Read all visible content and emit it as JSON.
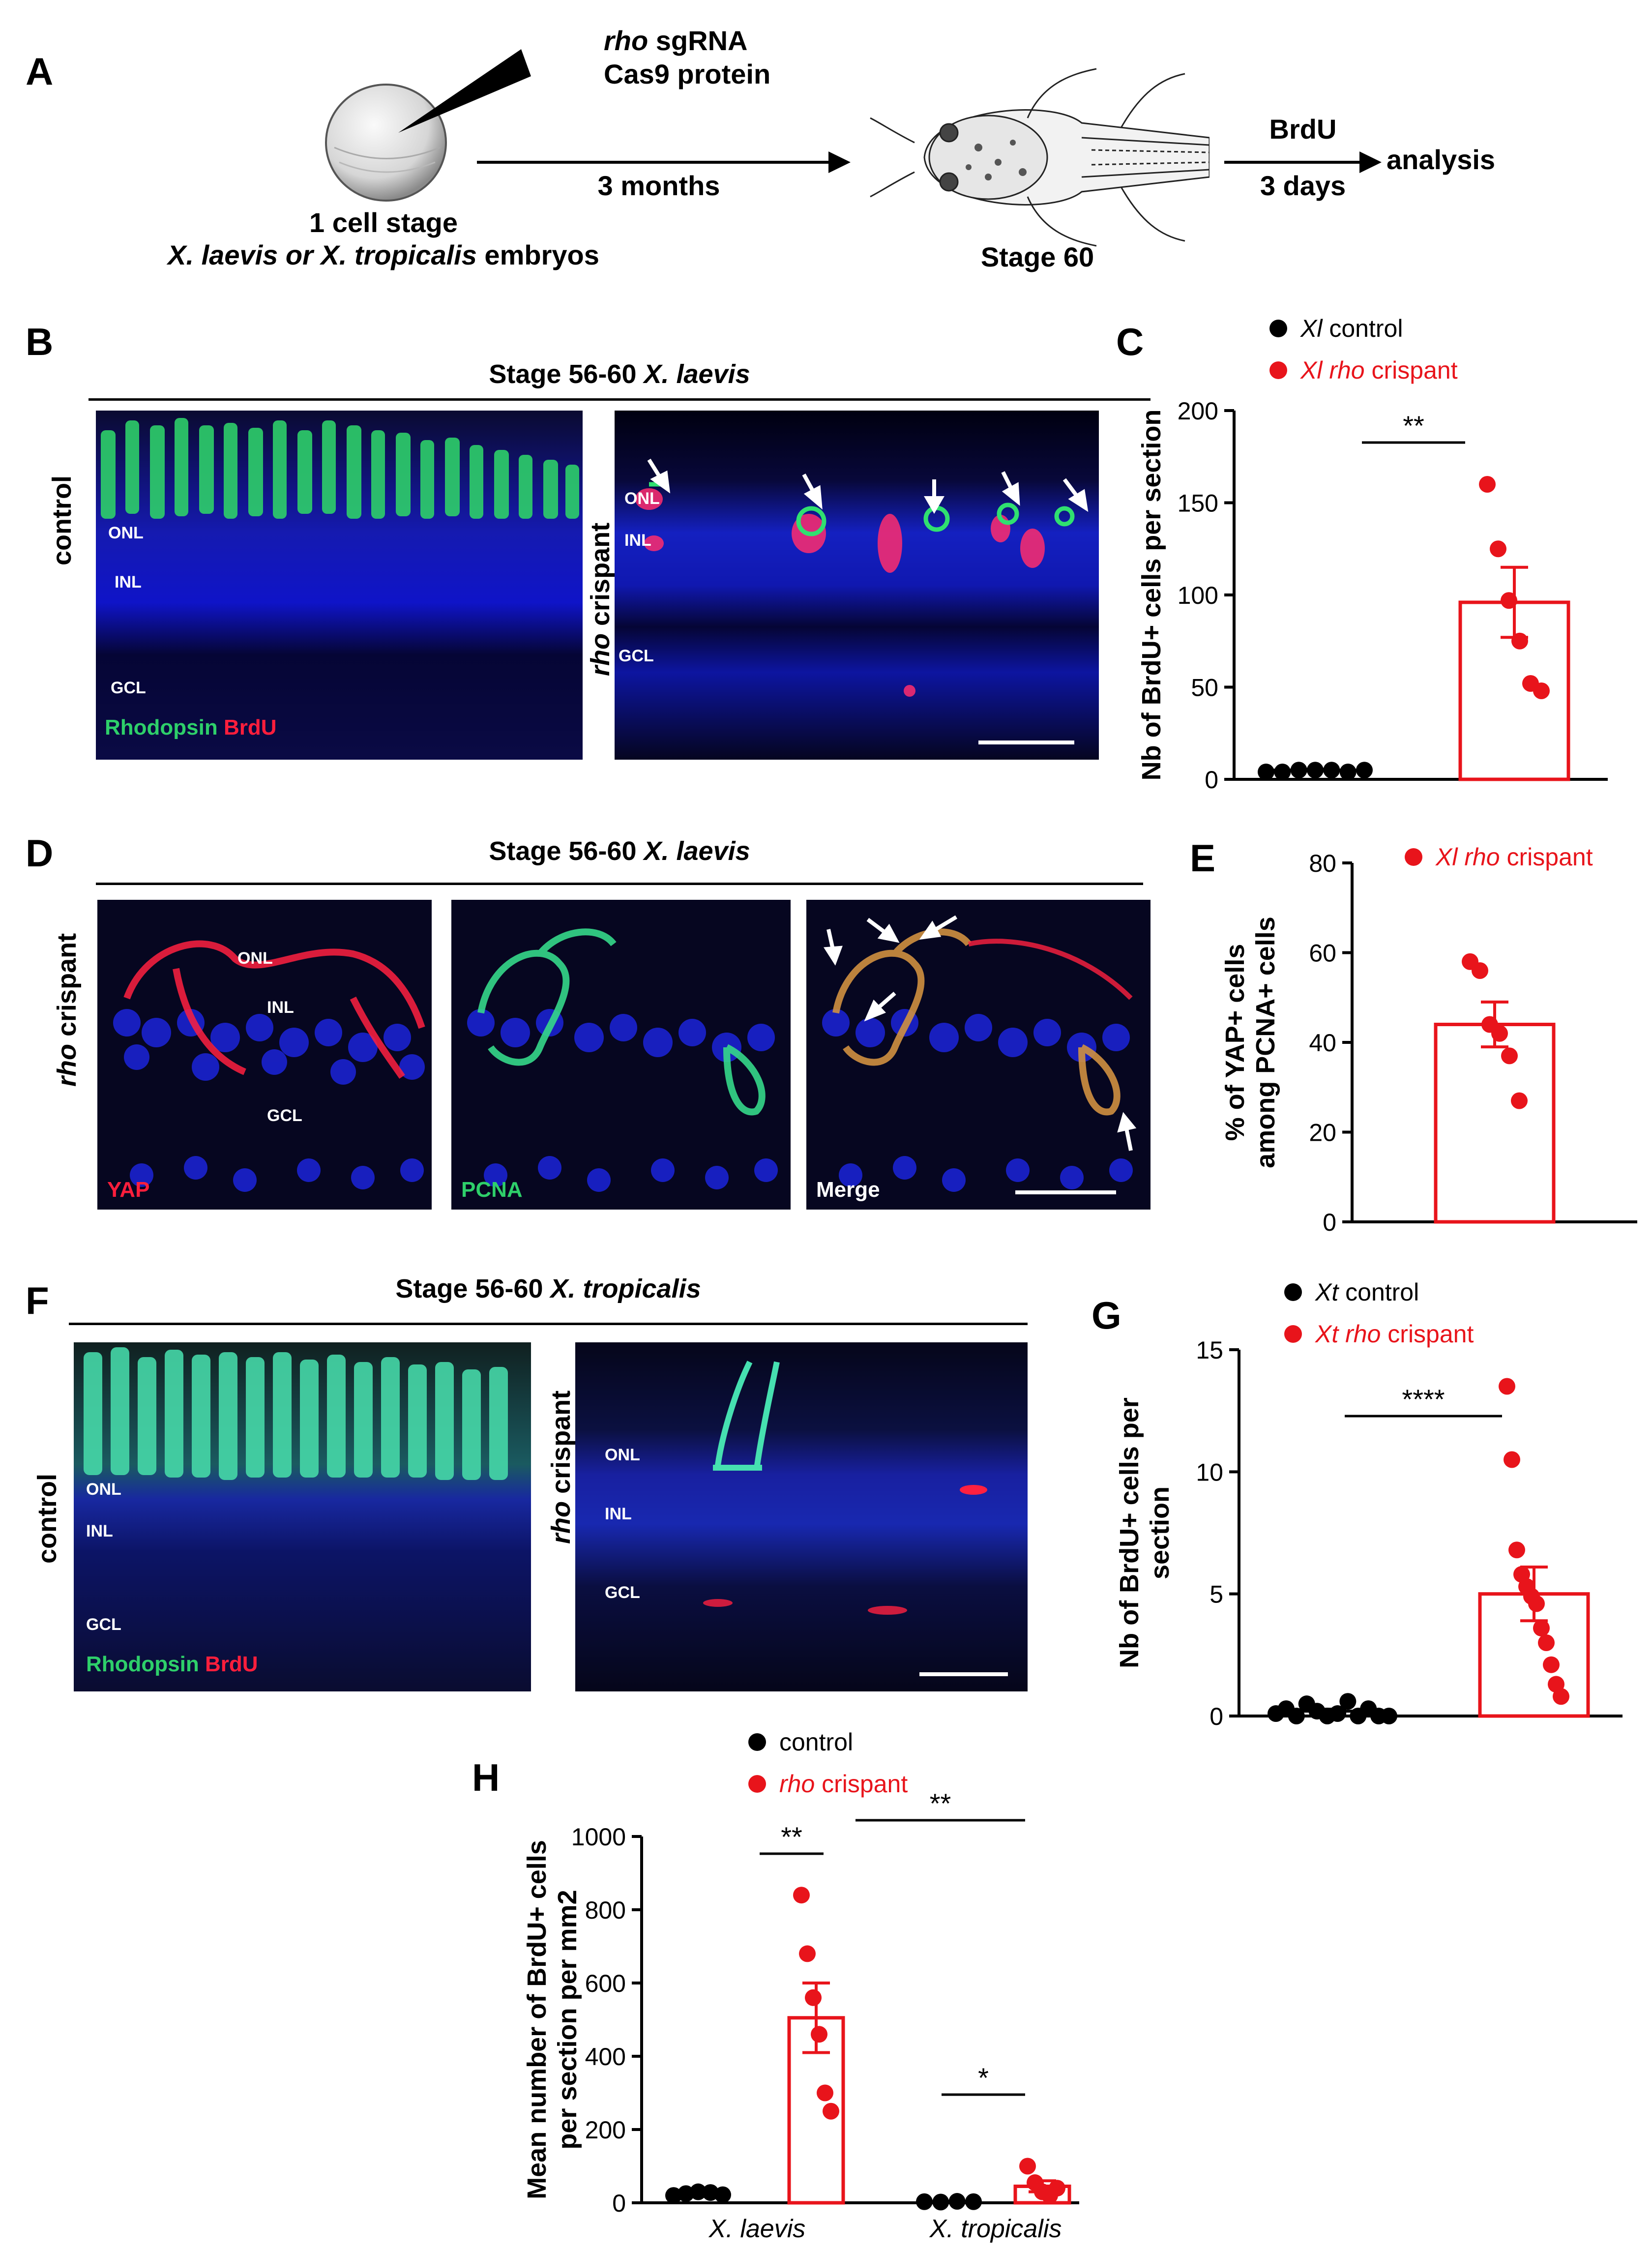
{
  "panelA": {
    "letter": "A",
    "inject_line1_italic": "rho",
    "inject_line1_rest": " sgRNA",
    "inject_line2": "Cas9 protein",
    "embryo_line1": "1 cell stage",
    "embryo_line2_italic": "X. laevis or X. tropicalis",
    "embryo_line2_rest": " embryos",
    "arrow1": "3 months",
    "stage": "Stage 60",
    "arrow2_top": "BrdU",
    "arrow2_bottom": "3 days",
    "end": "analysis"
  },
  "panelB": {
    "letter": "B",
    "title_prefix": "Stage 56-60 ",
    "title_italic": "X. laevis",
    "row_control": "control",
    "row_crispant_italic": "rho",
    "row_crispant_rest": " crispant",
    "layers": {
      "onl": "ONL",
      "inl": "INL",
      "gcl": "GCL"
    },
    "stain_green": "Rhodopsin",
    "stain_red": "BrdU"
  },
  "panelD": {
    "letter": "D",
    "title_prefix": "Stage 56-60 ",
    "title_italic": "X. laevis",
    "row_italic": "rho",
    "row_rest": " crispant",
    "layers": {
      "onl": "ONL",
      "inl": "INL",
      "gcl": "GCL"
    },
    "ch1": "YAP",
    "ch2": "PCNA",
    "ch3": "Merge"
  },
  "panelF": {
    "letter": "F",
    "title_prefix": "Stage 56-60 ",
    "title_italic": "X. tropicalis",
    "row_control": "control",
    "row_crispant_italic": "rho",
    "row_crispant_rest": " crispant",
    "layers": {
      "onl": "ONL",
      "inl": "INL",
      "gcl": "GCL"
    },
    "stain_green": "Rhodopsin",
    "stain_red": "BrdU"
  },
  "colors": {
    "control": "#000000",
    "crispant": "#e8141b",
    "green": "#2ecf6a",
    "red": "#ff1e3c",
    "blue": "#1a22d0"
  },
  "chart_data": [
    {
      "panel": "C",
      "type": "bar",
      "legend": [
        {
          "italic": "Xl",
          "rest": " control",
          "color": "#000000"
        },
        {
          "italic": "Xl rho",
          "rest": " crispant",
          "color": "#e8141b"
        }
      ],
      "ylabel": "Nb of BrdU+ cells per section",
      "ylim": [
        0,
        200
      ],
      "yticks": [
        "0",
        "50",
        "100",
        "150",
        "200"
      ],
      "groups": [
        {
          "name": "control",
          "mean": 5,
          "sem": 0.5,
          "points": [
            4,
            4,
            5,
            5,
            5,
            4,
            5
          ]
        },
        {
          "name": "crispant",
          "mean": 96,
          "sem": 19,
          "points": [
            160,
            125,
            97,
            75,
            52,
            48
          ]
        }
      ],
      "significance": "**"
    },
    {
      "panel": "E",
      "type": "bar",
      "legend": [
        {
          "italic": "Xl rho",
          "rest": " crispant",
          "color": "#e8141b"
        }
      ],
      "ylabel_line1": "% of YAP+ cells",
      "ylabel_line2": "among PCNA+ cells",
      "ylim": [
        0,
        80
      ],
      "yticks": [
        "0",
        "20",
        "40",
        "60",
        "80"
      ],
      "groups": [
        {
          "name": "crispant",
          "mean": 44,
          "sem": 5,
          "points": [
            58,
            56,
            44,
            42,
            37,
            27
          ]
        }
      ]
    },
    {
      "panel": "G",
      "type": "bar",
      "legend": [
        {
          "italic": "Xt",
          "rest": " control",
          "color": "#000000"
        },
        {
          "italic": "Xt rho",
          "rest": " crispant",
          "color": "#e8141b"
        }
      ],
      "ylabel_line1": "Nb of BrdU+ cells per",
      "ylabel_line2": "section",
      "ylim": [
        0,
        15
      ],
      "yticks": [
        "0",
        "5",
        "10",
        "15"
      ],
      "groups": [
        {
          "name": "control",
          "mean": 0.2,
          "sem": 0.08,
          "points": [
            0.1,
            0.3,
            0.0,
            0.5,
            0.2,
            0.0,
            0.1,
            0.6,
            0.0,
            0.3,
            0.0,
            0.0
          ]
        },
        {
          "name": "crispant",
          "mean": 5,
          "sem": 1.1,
          "points": [
            13.5,
            10.5,
            6.8,
            5.8,
            5.3,
            4.9,
            4.6,
            3.6,
            3.0,
            2.1,
            1.3,
            0.8
          ]
        }
      ],
      "significance": "****"
    },
    {
      "panel": "H",
      "type": "bar",
      "legend": [
        {
          "italic": "",
          "rest": "control",
          "color": "#000000"
        },
        {
          "italic": "rho",
          "rest": " crispant",
          "color": "#e8141b"
        }
      ],
      "ylabel_line1": "Mean number of BrdU+ cells",
      "ylabel_line2": "per section per mm2",
      "ylim": [
        0,
        1000
      ],
      "yticks": [
        "0",
        "200",
        "400",
        "600",
        "800",
        "1000"
      ],
      "categories": [
        "X. laevis",
        "X. tropicalis"
      ],
      "groups": [
        {
          "name": "control",
          "category": "X. laevis",
          "mean": 25,
          "sem": 4,
          "points": [
            20,
            25,
            30,
            28,
            22
          ]
        },
        {
          "name": "crispant",
          "category": "X. laevis",
          "mean": 505,
          "sem": 95,
          "points": [
            840,
            680,
            560,
            460,
            300,
            250
          ]
        },
        {
          "name": "control",
          "category": "X. tropicalis",
          "mean": 3,
          "sem": 1,
          "points": [
            3,
            2,
            4,
            3
          ]
        },
        {
          "name": "crispant",
          "category": "X. tropicalis",
          "mean": 45,
          "sem": 15,
          "points": [
            100,
            55,
            30,
            20,
            40
          ]
        }
      ],
      "significance": [
        "**",
        "**",
        "*"
      ]
    }
  ]
}
